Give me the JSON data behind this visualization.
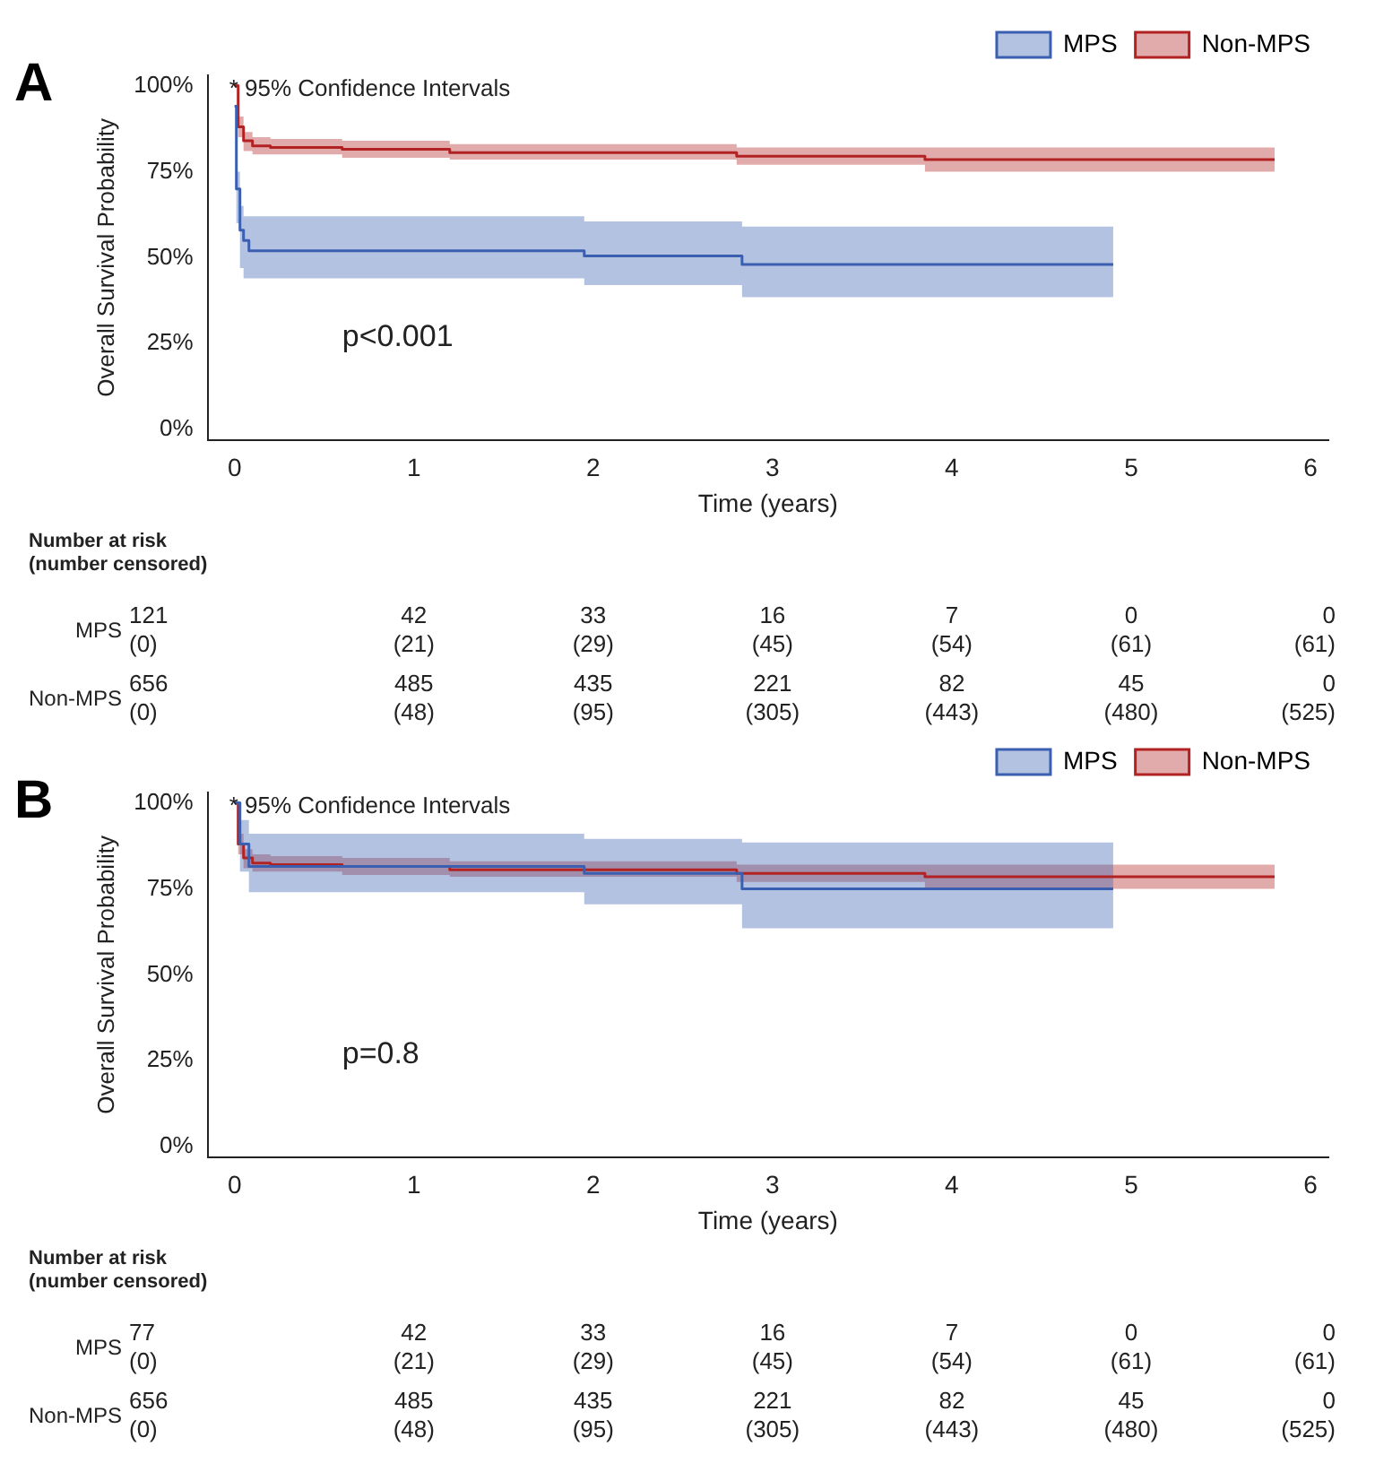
{
  "chart_data": [
    {
      "type": "step",
      "title": "A",
      "xlabel": "Time (years)",
      "ylabel": "Overall Survival Probability",
      "xlim": [
        -0.15,
        6.1
      ],
      "xticks": [
        0,
        1,
        2,
        3,
        4,
        5,
        6
      ],
      "ylim": [
        -3,
        103
      ],
      "yticks": [
        {
          "value": 0,
          "label": "0%"
        },
        {
          "value": 25,
          "label": "25%"
        },
        {
          "value": 50,
          "label": "50%"
        },
        {
          "value": 75,
          "label": "75%"
        },
        {
          "value": 100,
          "label": "100%"
        }
      ],
      "legend": "top right",
      "grid": false,
      "series": [
        {
          "name": "MPS",
          "color": "#3a5fb0",
          "x": [
            0,
            0.01,
            0.03,
            0.05,
            0.08,
            1.95,
            2.83,
            4.9
          ],
          "values": [
            94,
            70,
            58,
            55,
            52,
            50.5,
            48,
            48
          ],
          "lower": [
            94,
            60,
            47,
            44,
            44,
            42,
            38.5,
            38.5
          ],
          "upper": [
            94,
            75,
            65,
            62,
            62,
            60.5,
            59,
            59
          ]
        },
        {
          "name": "Non-MPS",
          "color": "#b22222",
          "x": [
            0,
            0.02,
            0.05,
            0.1,
            0.2,
            0.6,
            1.2,
            2.8,
            3.85,
            5.8
          ],
          "values": [
            100,
            88,
            84,
            82.5,
            82,
            81.5,
            80.5,
            79.5,
            78.5,
            78.5
          ],
          "lower": [
            100,
            85,
            81,
            80,
            80,
            79,
            78.5,
            77,
            75,
            75
          ],
          "upper": [
            100,
            91,
            86.5,
            85,
            84.5,
            84,
            83,
            82,
            82,
            82
          ]
        }
      ],
      "annotations": [
        "* 95% Confidence Intervals",
        "p<0.001",
        "Number at risk",
        "(number censored)",
        "MPS",
        "121",
        "42",
        "33",
        "16",
        "7",
        "0",
        "0",
        "(0)",
        "(21)",
        "(29)",
        "(45)",
        "(54)",
        "(61)",
        "(61)",
        "Non-MPS",
        "656",
        "485",
        "435",
        "221",
        "82",
        "45",
        "0",
        "(0)",
        "(48)",
        "(95)",
        "(305)",
        "(443)",
        "(480)",
        "(525)"
      ]
    },
    {
      "type": "step",
      "title": "B",
      "xlabel": "Time (years)",
      "ylabel": "Overall Survival Probability",
      "xlim": [
        -0.15,
        6.1
      ],
      "xticks": [
        0,
        1,
        2,
        3,
        4,
        5,
        6
      ],
      "ylim": [
        -3,
        103
      ],
      "yticks": [
        {
          "value": 0,
          "label": "0%"
        },
        {
          "value": 25,
          "label": "25%"
        },
        {
          "value": 50,
          "label": "50%"
        },
        {
          "value": 75,
          "label": "75%"
        },
        {
          "value": 100,
          "label": "100%"
        }
      ],
      "legend": "top right",
      "grid": false,
      "series": [
        {
          "name": "MPS",
          "color": "#3a5fb0",
          "x": [
            0,
            0.03,
            0.08,
            1.95,
            2.83,
            4.9
          ],
          "values": [
            100,
            88,
            81.5,
            79.5,
            75,
            75
          ],
          "lower": [
            100,
            80,
            74,
            70.5,
            63.5,
            63.5
          ],
          "upper": [
            100,
            95,
            91,
            89.5,
            88.5,
            88.5
          ]
        },
        {
          "name": "Non-MPS",
          "color": "#b22222",
          "x": [
            0,
            0.02,
            0.05,
            0.1,
            0.2,
            0.6,
            1.2,
            2.8,
            3.85,
            5.8
          ],
          "values": [
            100,
            88,
            84,
            82.5,
            82,
            81.5,
            80.5,
            79.5,
            78.5,
            78.5
          ],
          "lower": [
            100,
            85,
            81,
            80,
            80,
            79,
            78.5,
            77,
            75,
            75
          ],
          "upper": [
            100,
            91,
            86.5,
            85,
            84.5,
            84,
            83,
            82,
            82,
            82
          ]
        }
      ],
      "annotations": [
        "* 95% Confidence Intervals",
        "p=0.8",
        "Number at risk",
        "(number censored)",
        "MPS",
        "77",
        "42",
        "33",
        "16",
        "7",
        "0",
        "0",
        "(0)",
        "(21)",
        "(29)",
        "(45)",
        "(54)",
        "(61)",
        "(61)",
        "Non-MPS",
        "656",
        "485",
        "435",
        "221",
        "82",
        "45",
        "0",
        "(0)",
        "(48)",
        "(95)",
        "(305)",
        "(443)",
        "(480)",
        "(525)"
      ]
    }
  ]
}
